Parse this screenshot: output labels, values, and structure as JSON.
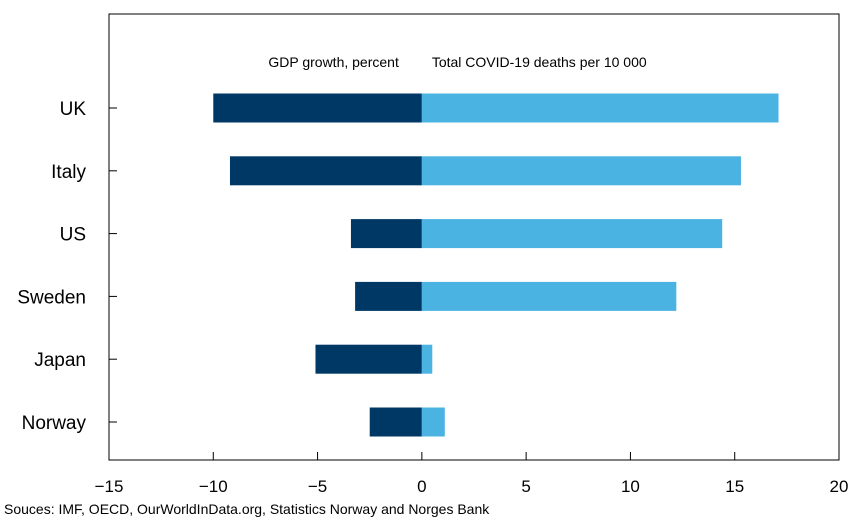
{
  "chart_data": {
    "type": "bar",
    "orientation": "horizontal",
    "stacked": "diverging",
    "categories": [
      "UK",
      "Italy",
      "US",
      "Sweden",
      "Japan",
      "Norway"
    ],
    "series": [
      {
        "name": "GDP growth, percent",
        "values": [
          -10.0,
          -9.2,
          -3.4,
          -3.2,
          -5.1,
          -2.5
        ],
        "color": "#003865"
      },
      {
        "name": "Total COVID-19 deaths per 10 000",
        "values": [
          17.1,
          15.3,
          14.4,
          12.2,
          0.5,
          1.1
        ],
        "color": "#4ab3e2"
      }
    ],
    "xlim": [
      -15,
      20
    ],
    "xticks": [
      -15,
      -10,
      -5,
      0,
      5,
      10,
      15,
      20
    ],
    "xtick_labels": [
      "−15",
      "−10",
      "−5",
      "0",
      "5",
      "10",
      "15",
      "20"
    ],
    "grid": false,
    "legend_position": "top-center",
    "source": "Souces:  IMF, OECD, OurWorldInData.org, Statistics Norway and Norges Bank"
  }
}
